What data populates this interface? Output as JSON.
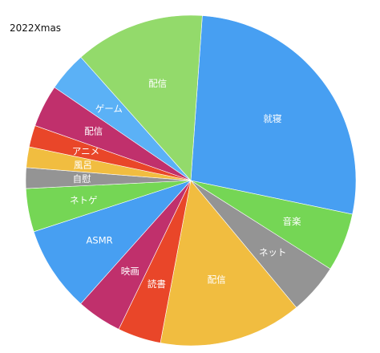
{
  "chart_data": {
    "type": "pie",
    "title": "2022Xmas",
    "start_angle_deg": -86,
    "direction": "clockwise",
    "slices": [
      {
        "label": "就寝",
        "value": 29.5,
        "color": "#479FF2"
      },
      {
        "label": "音楽",
        "value": 6.2,
        "color": "#75D655"
      },
      {
        "label": "ネット",
        "value": 5.4,
        "color": "#949494"
      },
      {
        "label": "配信",
        "value": 15.2,
        "color": "#F1BD40"
      },
      {
        "label": "読書",
        "value": 4.6,
        "color": "#E94629"
      },
      {
        "label": "映画",
        "value": 4.8,
        "color": "#C0306C"
      },
      {
        "label": "ASMR",
        "value": 9.1,
        "color": "#479FF2"
      },
      {
        "label": "ネトゲ",
        "value": 4.6,
        "color": "#75D655"
      },
      {
        "label": "自慰",
        "value": 2.2,
        "color": "#949494"
      },
      {
        "label": "風呂",
        "value": 2.2,
        "color": "#F1BD40"
      },
      {
        "label": "アニメ",
        "value": 2.3,
        "color": "#E94629"
      },
      {
        "label": "配信",
        "value": 4.5,
        "color": "#C0306C"
      },
      {
        "label": "ゲーム",
        "value": 4.2,
        "color": "#5BB1F6"
      },
      {
        "label": "配信",
        "value": 13.8,
        "color": "#93DA6B"
      }
    ]
  }
}
